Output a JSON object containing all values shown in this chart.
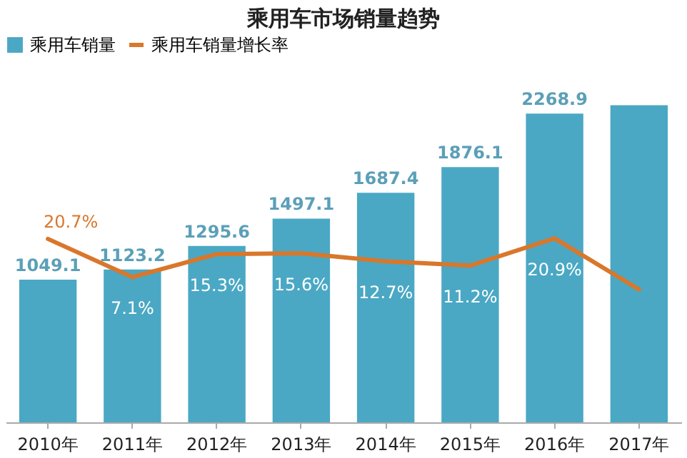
{
  "chart_data": {
    "type": "bar",
    "title": "乘用车市场销量趋势",
    "categories": [
      "2010年",
      "2011年",
      "2012年",
      "2013年",
      "2014年",
      "2015年",
      "2016年",
      "2017年"
    ],
    "series": [
      {
        "name": "乘用车销量",
        "color": "#4aa8c4",
        "values": [
          1049.1,
          1123.2,
          1295.6,
          1497.1,
          1687.4,
          1876.1,
          2268.9,
          2330
        ],
        "value_labels": [
          "1049.1",
          "1123.2",
          "1295.6",
          "1497.1",
          "1687.4",
          "1876.1",
          "2268.9",
          null
        ]
      },
      {
        "name": "乘用车销量增长率",
        "type": "line",
        "axis": "y2",
        "color": "#d9772b",
        "values": [
          20.7,
          7.1,
          15.3,
          15.6,
          12.7,
          11.2,
          20.9,
          2.7
        ],
        "value_labels": [
          "20.7%",
          "7.1%",
          "15.3%",
          "15.6%",
          "12.7%",
          "11.2%",
          "20.9%",
          null
        ]
      }
    ],
    "legend": "top",
    "grid": false
  }
}
